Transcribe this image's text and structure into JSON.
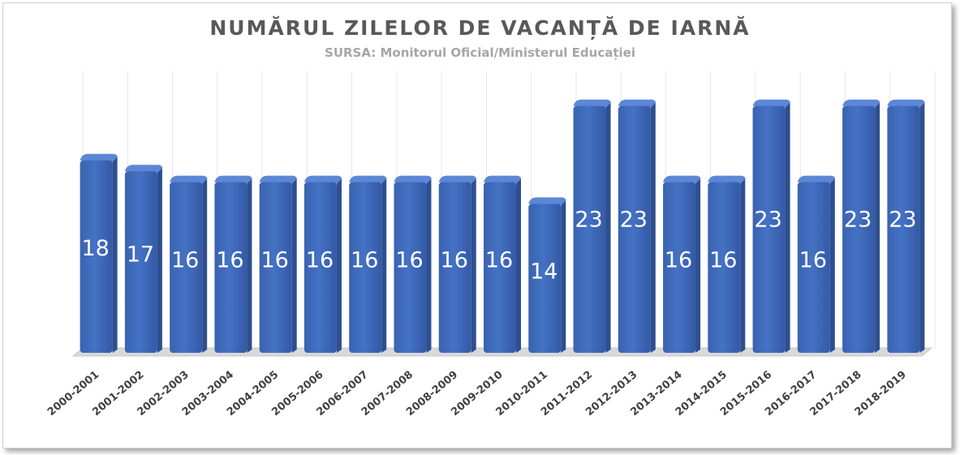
{
  "chart_data": {
    "type": "bar",
    "title": "NUMĂRUL ZILELOR DE VACANȚĂ DE IARNĂ",
    "subtitle": "SURSA: Monitorul Oficial/Ministerul Educației",
    "categories": [
      "2000-2001",
      "2001-2002",
      "2002-2003",
      "2003-2004",
      "2004-2005",
      "2005-2006",
      "2006-2007",
      "2007-2008",
      "2008-2009",
      "2009-2010",
      "2010-2011",
      "2011-2012",
      "2012-2013",
      "2013-2014",
      "2014-2015",
      "2015-2016",
      "2016-2017",
      "2017-2018",
      "2018-2019"
    ],
    "values": [
      18,
      17,
      16,
      16,
      16,
      16,
      16,
      16,
      16,
      16,
      14,
      23,
      23,
      16,
      16,
      23,
      16,
      23,
      23
    ],
    "xlabel": "",
    "ylabel": "",
    "ylim": [
      0,
      25
    ],
    "grid": "vertical",
    "bar_color": "#4472C4"
  }
}
